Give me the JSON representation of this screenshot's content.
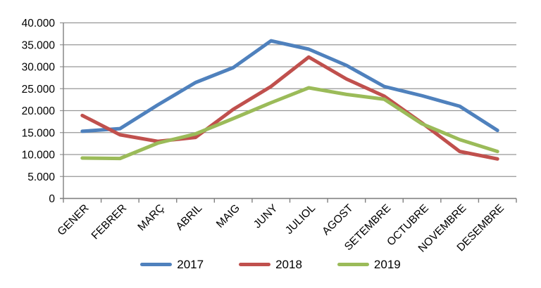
{
  "chart_data": {
    "type": "line",
    "title": "",
    "xlabel": "",
    "ylabel": "",
    "categories": [
      "GENER",
      "FEBRER",
      "MARÇ",
      "ABRIL",
      "MAIG",
      "JUNY",
      "JULIOL",
      "AGOST",
      "SETEMBRE",
      "OCTUBRE",
      "NOVEMBRE",
      "DESEMBRE"
    ],
    "series": [
      {
        "name": "2017",
        "color": "#4F81BD",
        "values": [
          15300,
          15900,
          21300,
          26400,
          29800,
          35900,
          34000,
          30300,
          25500,
          23400,
          21000,
          15500
        ]
      },
      {
        "name": "2018",
        "color": "#C0504D",
        "values": [
          18900,
          14500,
          13000,
          13900,
          20300,
          25500,
          32200,
          27200,
          23300,
          17200,
          10700,
          9000
        ]
      },
      {
        "name": "2019",
        "color": "#9BBB59",
        "values": [
          9200,
          9100,
          12600,
          14700,
          18200,
          21800,
          25200,
          23700,
          22600,
          17000,
          13400,
          10700
        ]
      }
    ],
    "y_ticks": [
      "0",
      "5.000",
      "10.000",
      "15.000",
      "20.000",
      "25.000",
      "30.000",
      "35.000",
      "40.000"
    ],
    "ylim": [
      0,
      40000
    ],
    "y_step": 5000,
    "grid": true,
    "legend_position": "bottom",
    "grid_color": "#969696",
    "axis_color": "#808080",
    "text_color": "#000000"
  }
}
